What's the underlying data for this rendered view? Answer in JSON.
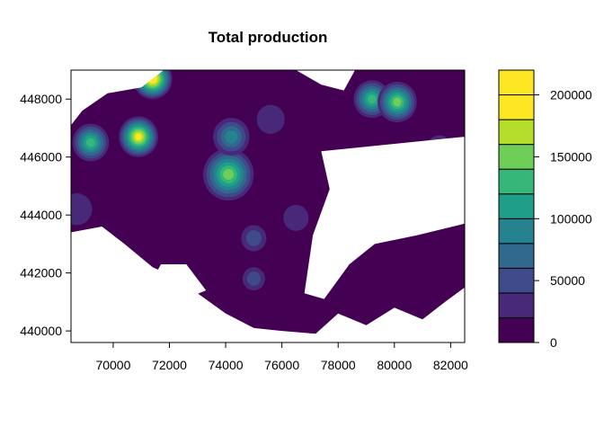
{
  "chart_data": {
    "type": "heatmap",
    "title": "Total production",
    "xlabel": "",
    "ylabel": "",
    "xlim": [
      68500,
      82500
    ],
    "ylim": [
      439600,
      449000
    ],
    "x_ticks": [
      70000,
      72000,
      74000,
      76000,
      78000,
      80000,
      82000
    ],
    "y_ticks": [
      440000,
      442000,
      444000,
      446000,
      448000
    ],
    "x_tick_labels": [
      "70000",
      "72000",
      "74000",
      "76000",
      "78000",
      "80000",
      "82000"
    ],
    "y_tick_labels": [
      "440000",
      "442000",
      "444000",
      "446000",
      "448000"
    ],
    "grid": false,
    "legend_placement": "right",
    "levels": [
      0,
      20000,
      40000,
      60000,
      80000,
      100000,
      120000,
      140000,
      160000,
      180000,
      200000,
      220000
    ],
    "legend_labels": [
      "0",
      "50000",
      "100000",
      "150000",
      "200000"
    ],
    "legend_label_values": [
      0,
      50000,
      100000,
      150000,
      200000
    ],
    "colors": [
      "#440154",
      "#482878",
      "#3e4a89",
      "#31688e",
      "#26828e",
      "#1f9e89",
      "#35b779",
      "#6ece58",
      "#b5de2b",
      "#fde725",
      "#fde725"
    ],
    "no_data_color": "#ffffff",
    "base_color": "#440154",
    "data_region": [
      [
        68500,
        449000
      ],
      [
        82500,
        449000
      ],
      [
        82500,
        441500
      ],
      [
        81800,
        441000
      ],
      [
        81000,
        440400
      ],
      [
        80000,
        440800
      ],
      [
        79000,
        440200
      ],
      [
        78000,
        440600
      ],
      [
        77200,
        439900
      ],
      [
        76000,
        440000
      ],
      [
        75000,
        440100
      ],
      [
        74000,
        440600
      ],
      [
        73000,
        441300
      ],
      [
        72000,
        441600
      ],
      [
        71400,
        442200
      ],
      [
        70400,
        443000
      ],
      [
        69600,
        443600
      ],
      [
        68500,
        443400
      ]
    ],
    "no_data_holes": [
      [
        [
          68500,
          449000
        ],
        [
          71800,
          449000
        ],
        [
          71000,
          448400
        ],
        [
          69800,
          448200
        ],
        [
          68900,
          447600
        ],
        [
          68500,
          447100
        ]
      ],
      [
        [
          76500,
          449000
        ],
        [
          78600,
          449000
        ],
        [
          78200,
          448300
        ],
        [
          77400,
          448500
        ]
      ],
      [
        [
          77400,
          446200
        ],
        [
          82500,
          446700
        ],
        [
          82500,
          443700
        ],
        [
          80800,
          443300
        ],
        [
          79300,
          443000
        ],
        [
          78400,
          442300
        ],
        [
          77500,
          441100
        ],
        [
          76800,
          441300
        ],
        [
          77100,
          443300
        ],
        [
          77700,
          444900
        ]
      ],
      [
        [
          68500,
          443400
        ],
        [
          69600,
          443600
        ],
        [
          70400,
          443000
        ],
        [
          71400,
          442200
        ],
        [
          72100,
          441900
        ],
        [
          71100,
          441000
        ],
        [
          69800,
          440400
        ],
        [
          68500,
          440700
        ]
      ],
      [
        [
          71000,
          441100
        ],
        [
          72300,
          441000
        ],
        [
          73300,
          441400
        ],
        [
          72600,
          442300
        ],
        [
          71700,
          442300
        ]
      ]
    ],
    "cells": [
      {
        "x": 71400,
        "y": 448700,
        "v": 205000,
        "r": 700
      },
      {
        "x": 70900,
        "y": 446700,
        "v": 195000,
        "r": 700
      },
      {
        "x": 69200,
        "y": 446500,
        "v": 130000,
        "r": 650
      },
      {
        "x": 74100,
        "y": 445400,
        "v": 150000,
        "r": 900
      },
      {
        "x": 74200,
        "y": 446700,
        "v": 80000,
        "r": 650
      },
      {
        "x": 79200,
        "y": 448000,
        "v": 125000,
        "r": 650
      },
      {
        "x": 80100,
        "y": 447900,
        "v": 140000,
        "r": 700
      },
      {
        "x": 75000,
        "y": 443200,
        "v": 55000,
        "r": 450
      },
      {
        "x": 75000,
        "y": 441800,
        "v": 48000,
        "r": 400
      },
      {
        "x": 76500,
        "y": 443900,
        "v": 25000,
        "r": 450
      },
      {
        "x": 81600,
        "y": 446300,
        "v": 35000,
        "r": 450
      },
      {
        "x": 75600,
        "y": 447300,
        "v": 25000,
        "r": 500
      },
      {
        "x": 68700,
        "y": 444200,
        "v": 25000,
        "r": 550
      }
    ]
  }
}
